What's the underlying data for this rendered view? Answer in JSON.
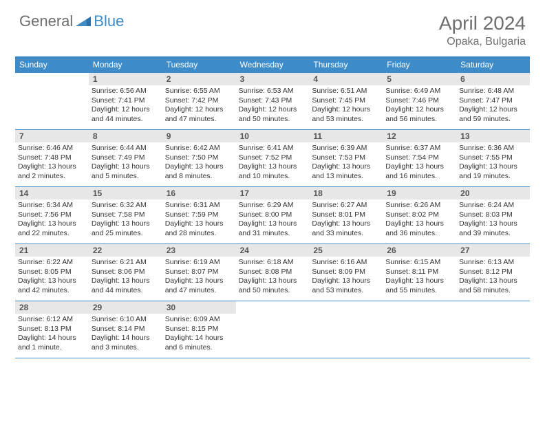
{
  "logo": {
    "general": "General",
    "blue": "Blue"
  },
  "title": "April 2024",
  "location": "Opaka, Bulgaria",
  "colors": {
    "header_bg": "#3d8bc8",
    "header_text": "#ffffff",
    "daynum_bg": "#e7e7e7",
    "text_gray": "#6e6e6e",
    "divider": "#3d8bc8"
  },
  "dow": [
    "Sunday",
    "Monday",
    "Tuesday",
    "Wednesday",
    "Thursday",
    "Friday",
    "Saturday"
  ],
  "weeks": [
    [
      {
        "n": "",
        "sr": "",
        "ss": "",
        "dl": ""
      },
      {
        "n": "1",
        "sr": "Sunrise: 6:56 AM",
        "ss": "Sunset: 7:41 PM",
        "dl": "Daylight: 12 hours and 44 minutes."
      },
      {
        "n": "2",
        "sr": "Sunrise: 6:55 AM",
        "ss": "Sunset: 7:42 PM",
        "dl": "Daylight: 12 hours and 47 minutes."
      },
      {
        "n": "3",
        "sr": "Sunrise: 6:53 AM",
        "ss": "Sunset: 7:43 PM",
        "dl": "Daylight: 12 hours and 50 minutes."
      },
      {
        "n": "4",
        "sr": "Sunrise: 6:51 AM",
        "ss": "Sunset: 7:45 PM",
        "dl": "Daylight: 12 hours and 53 minutes."
      },
      {
        "n": "5",
        "sr": "Sunrise: 6:49 AM",
        "ss": "Sunset: 7:46 PM",
        "dl": "Daylight: 12 hours and 56 minutes."
      },
      {
        "n": "6",
        "sr": "Sunrise: 6:48 AM",
        "ss": "Sunset: 7:47 PM",
        "dl": "Daylight: 12 hours and 59 minutes."
      }
    ],
    [
      {
        "n": "7",
        "sr": "Sunrise: 6:46 AM",
        "ss": "Sunset: 7:48 PM",
        "dl": "Daylight: 13 hours and 2 minutes."
      },
      {
        "n": "8",
        "sr": "Sunrise: 6:44 AM",
        "ss": "Sunset: 7:49 PM",
        "dl": "Daylight: 13 hours and 5 minutes."
      },
      {
        "n": "9",
        "sr": "Sunrise: 6:42 AM",
        "ss": "Sunset: 7:50 PM",
        "dl": "Daylight: 13 hours and 8 minutes."
      },
      {
        "n": "10",
        "sr": "Sunrise: 6:41 AM",
        "ss": "Sunset: 7:52 PM",
        "dl": "Daylight: 13 hours and 10 minutes."
      },
      {
        "n": "11",
        "sr": "Sunrise: 6:39 AM",
        "ss": "Sunset: 7:53 PM",
        "dl": "Daylight: 13 hours and 13 minutes."
      },
      {
        "n": "12",
        "sr": "Sunrise: 6:37 AM",
        "ss": "Sunset: 7:54 PM",
        "dl": "Daylight: 13 hours and 16 minutes."
      },
      {
        "n": "13",
        "sr": "Sunrise: 6:36 AM",
        "ss": "Sunset: 7:55 PM",
        "dl": "Daylight: 13 hours and 19 minutes."
      }
    ],
    [
      {
        "n": "14",
        "sr": "Sunrise: 6:34 AM",
        "ss": "Sunset: 7:56 PM",
        "dl": "Daylight: 13 hours and 22 minutes."
      },
      {
        "n": "15",
        "sr": "Sunrise: 6:32 AM",
        "ss": "Sunset: 7:58 PM",
        "dl": "Daylight: 13 hours and 25 minutes."
      },
      {
        "n": "16",
        "sr": "Sunrise: 6:31 AM",
        "ss": "Sunset: 7:59 PM",
        "dl": "Daylight: 13 hours and 28 minutes."
      },
      {
        "n": "17",
        "sr": "Sunrise: 6:29 AM",
        "ss": "Sunset: 8:00 PM",
        "dl": "Daylight: 13 hours and 31 minutes."
      },
      {
        "n": "18",
        "sr": "Sunrise: 6:27 AM",
        "ss": "Sunset: 8:01 PM",
        "dl": "Daylight: 13 hours and 33 minutes."
      },
      {
        "n": "19",
        "sr": "Sunrise: 6:26 AM",
        "ss": "Sunset: 8:02 PM",
        "dl": "Daylight: 13 hours and 36 minutes."
      },
      {
        "n": "20",
        "sr": "Sunrise: 6:24 AM",
        "ss": "Sunset: 8:03 PM",
        "dl": "Daylight: 13 hours and 39 minutes."
      }
    ],
    [
      {
        "n": "21",
        "sr": "Sunrise: 6:22 AM",
        "ss": "Sunset: 8:05 PM",
        "dl": "Daylight: 13 hours and 42 minutes."
      },
      {
        "n": "22",
        "sr": "Sunrise: 6:21 AM",
        "ss": "Sunset: 8:06 PM",
        "dl": "Daylight: 13 hours and 44 minutes."
      },
      {
        "n": "23",
        "sr": "Sunrise: 6:19 AM",
        "ss": "Sunset: 8:07 PM",
        "dl": "Daylight: 13 hours and 47 minutes."
      },
      {
        "n": "24",
        "sr": "Sunrise: 6:18 AM",
        "ss": "Sunset: 8:08 PM",
        "dl": "Daylight: 13 hours and 50 minutes."
      },
      {
        "n": "25",
        "sr": "Sunrise: 6:16 AM",
        "ss": "Sunset: 8:09 PM",
        "dl": "Daylight: 13 hours and 53 minutes."
      },
      {
        "n": "26",
        "sr": "Sunrise: 6:15 AM",
        "ss": "Sunset: 8:11 PM",
        "dl": "Daylight: 13 hours and 55 minutes."
      },
      {
        "n": "27",
        "sr": "Sunrise: 6:13 AM",
        "ss": "Sunset: 8:12 PM",
        "dl": "Daylight: 13 hours and 58 minutes."
      }
    ],
    [
      {
        "n": "28",
        "sr": "Sunrise: 6:12 AM",
        "ss": "Sunset: 8:13 PM",
        "dl": "Daylight: 14 hours and 1 minute."
      },
      {
        "n": "29",
        "sr": "Sunrise: 6:10 AM",
        "ss": "Sunset: 8:14 PM",
        "dl": "Daylight: 14 hours and 3 minutes."
      },
      {
        "n": "30",
        "sr": "Sunrise: 6:09 AM",
        "ss": "Sunset: 8:15 PM",
        "dl": "Daylight: 14 hours and 6 minutes."
      },
      {
        "n": "",
        "sr": "",
        "ss": "",
        "dl": ""
      },
      {
        "n": "",
        "sr": "",
        "ss": "",
        "dl": ""
      },
      {
        "n": "",
        "sr": "",
        "ss": "",
        "dl": ""
      },
      {
        "n": "",
        "sr": "",
        "ss": "",
        "dl": ""
      }
    ]
  ]
}
